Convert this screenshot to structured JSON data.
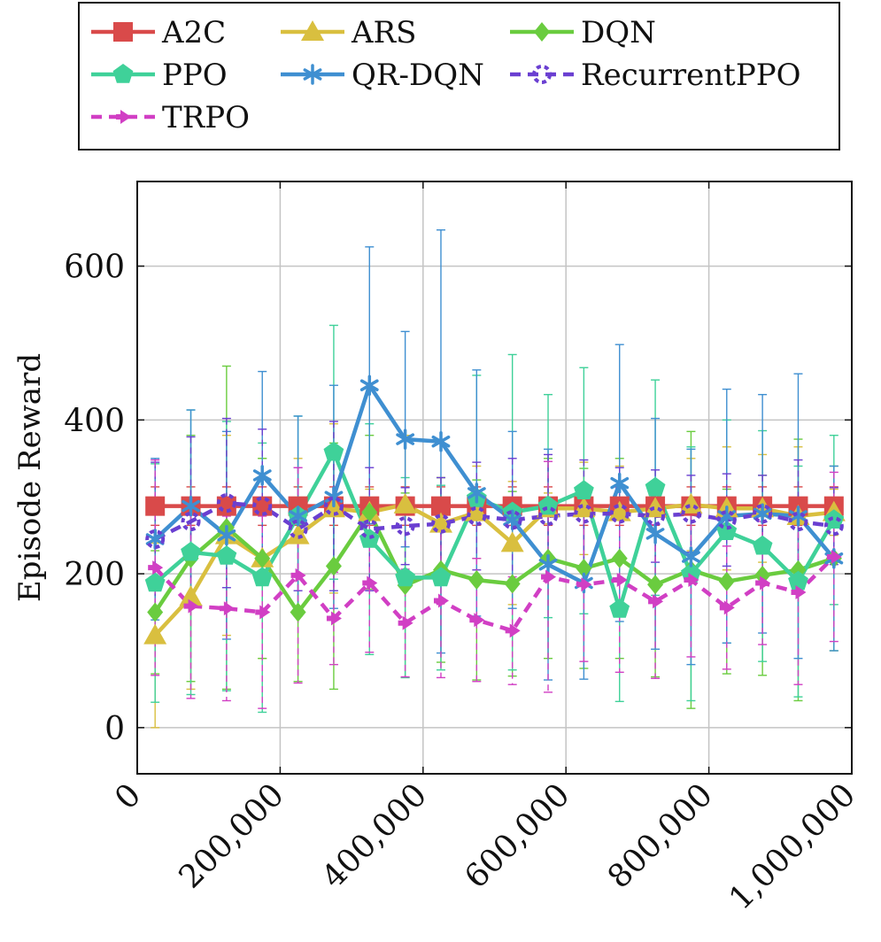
{
  "chart_data": {
    "type": "line",
    "title": "",
    "xlabel": "",
    "ylabel": "Episode Reward",
    "xlim": [
      0,
      1000000
    ],
    "ylim": [
      -60,
      710
    ],
    "xticks": [
      0,
      200000,
      400000,
      600000,
      800000,
      1000000
    ],
    "xtick_labels": [
      "0",
      "200,000",
      "400,000",
      "600,000",
      "800,000",
      "1,000,000"
    ],
    "yticks": [
      0,
      200,
      400,
      600
    ],
    "ytick_labels": [
      "0",
      "200",
      "400",
      "600"
    ],
    "grid": true,
    "legend_position": "top",
    "x": [
      25000,
      75000,
      125000,
      175000,
      225000,
      275000,
      325000,
      375000,
      425000,
      475000,
      525000,
      575000,
      625000,
      675000,
      725000,
      775000,
      825000,
      875000,
      925000,
      975000
    ],
    "series": [
      {
        "name": "A2C",
        "color": "#d94a4a",
        "marker": "square",
        "dash": false,
        "values": [
          288,
          288,
          288,
          288,
          288,
          288,
          288,
          288,
          288,
          288,
          288,
          288,
          288,
          288,
          288,
          288,
          288,
          288,
          288,
          288
        ],
        "err": [
          25,
          25,
          25,
          25,
          25,
          25,
          25,
          25,
          25,
          25,
          25,
          25,
          25,
          25,
          25,
          25,
          25,
          25,
          25,
          25
        ]
      },
      {
        "name": "ARS",
        "color": "#d9bf3f",
        "marker": "triangle",
        "dash": false,
        "values": [
          120,
          170,
          250,
          220,
          250,
          285,
          280,
          290,
          265,
          280,
          240,
          285,
          285,
          280,
          285,
          290,
          285,
          285,
          275,
          280
        ],
        "err": [
          120,
          120,
          130,
          130,
          100,
          110,
          30,
          90,
          60,
          60,
          80,
          20,
          60,
          60,
          30,
          60,
          80,
          70,
          90,
          30
        ]
      },
      {
        "name": "DQN",
        "color": "#6acc3f",
        "marker": "diamond",
        "dash": false,
        "values": [
          150,
          220,
          260,
          220,
          150,
          210,
          280,
          185,
          205,
          192,
          187,
          220,
          207,
          220,
          186,
          205,
          190,
          198,
          205,
          220
        ],
        "err": [
          80,
          160,
          210,
          130,
          90,
          160,
          100,
          120,
          120,
          130,
          120,
          130,
          130,
          130,
          120,
          180,
          120,
          130,
          170,
          120
        ]
      },
      {
        "name": "PPO",
        "color": "#3fd199",
        "marker": "pentagon",
        "dash": false,
        "values": [
          188,
          228,
          223,
          195,
          275,
          358,
          245,
          195,
          195,
          298,
          280,
          288,
          308,
          154,
          312,
          200,
          255,
          236,
          190,
          270
        ],
        "err": [
          155,
          185,
          175,
          175,
          130,
          165,
          150,
          130,
          120,
          160,
          205,
          145,
          160,
          120,
          140,
          165,
          145,
          150,
          150,
          110
        ]
      },
      {
        "name": "QR-DQN",
        "color": "#3f8fd1",
        "marker": "asterisk",
        "dash": false,
        "values": [
          245,
          288,
          250,
          328,
          275,
          300,
          445,
          375,
          372,
          305,
          270,
          212,
          188,
          318,
          252,
          222,
          275,
          278,
          275,
          220
        ],
        "err": [
          105,
          125,
          135,
          135,
          130,
          145,
          180,
          140,
          275,
          160,
          115,
          150,
          125,
          180,
          150,
          140,
          165,
          155,
          185,
          120
        ]
      },
      {
        "name": "RecurrentPPO",
        "color": "#6a3fd1",
        "marker": "circle-dashed",
        "dash": true,
        "values": [
          245,
          268,
          292,
          288,
          258,
          288,
          258,
          262,
          265,
          275,
          270,
          275,
          278,
          278,
          275,
          278,
          270,
          278,
          268,
          262
        ],
        "err": [
          100,
          110,
          110,
          100,
          80,
          110,
          80,
          50,
          60,
          70,
          80,
          80,
          70,
          60,
          60,
          50,
          60,
          50,
          80,
          50
        ]
      },
      {
        "name": "TRPO",
        "color": "#d13fc4",
        "marker": "arrow",
        "dash": true,
        "values": [
          208,
          158,
          155,
          150,
          198,
          142,
          188,
          136,
          165,
          140,
          126,
          196,
          186,
          192,
          164,
          192,
          156,
          188,
          176,
          222
        ],
        "err": [
          140,
          120,
          120,
          125,
          140,
          60,
          90,
          70,
          100,
          80,
          70,
          150,
          100,
          120,
          100,
          100,
          80,
          80,
          120,
          110
        ]
      }
    ]
  }
}
